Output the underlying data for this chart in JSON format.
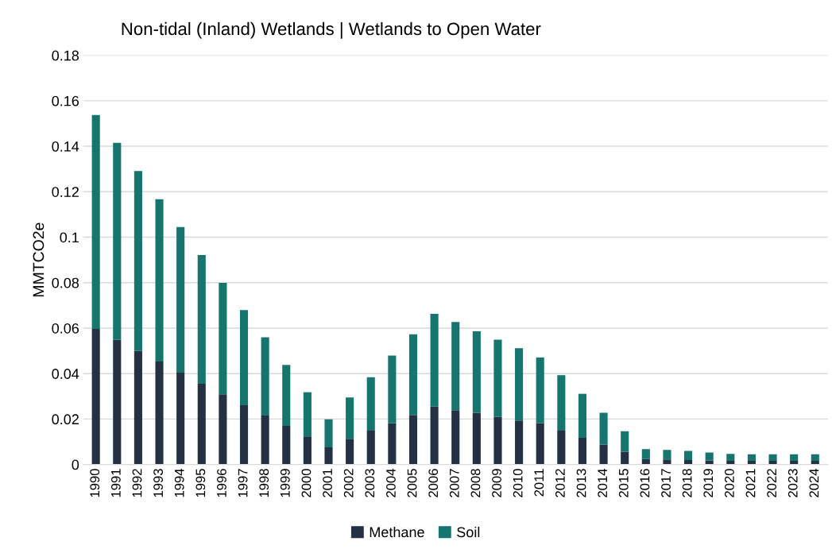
{
  "chart_data": {
    "type": "bar",
    "title": "Non-tidal (Inland) Wetlands | Wetlands to Open Water",
    "ylabel": "MMTCO2e",
    "categories": [
      "1990",
      "1991",
      "1992",
      "1993",
      "1994",
      "1995",
      "1996",
      "1997",
      "1998",
      "1999",
      "2000",
      "2001",
      "2002",
      "2003",
      "2004",
      "2005",
      "2006",
      "2007",
      "2008",
      "2009",
      "2010",
      "2011",
      "2012",
      "2013",
      "2014",
      "2015",
      "2016",
      "2017",
      "2018",
      "2019",
      "2020",
      "2021",
      "2022",
      "2023",
      "2024"
    ],
    "stacked": true,
    "series": [
      {
        "name": "Methane",
        "color": "#243145",
        "values": [
          0.0596,
          0.0548,
          0.0499,
          0.0453,
          0.0404,
          0.0355,
          0.0309,
          0.0261,
          0.0215,
          0.017,
          0.0121,
          0.0076,
          0.0113,
          0.0149,
          0.0182,
          0.0218,
          0.0255,
          0.0239,
          0.0227,
          0.0209,
          0.0194,
          0.0182,
          0.0149,
          0.0118,
          0.0088,
          0.0056,
          0.0024,
          0.0022,
          0.002,
          0.0018,
          0.0016,
          0.0016,
          0.0016,
          0.0016,
          0.0016
        ]
      },
      {
        "name": "Soil",
        "color": "#177570",
        "values": [
          0.0941,
          0.0867,
          0.0792,
          0.0714,
          0.0641,
          0.0566,
          0.049,
          0.0418,
          0.0345,
          0.0268,
          0.0197,
          0.0123,
          0.0182,
          0.0235,
          0.0297,
          0.0355,
          0.0408,
          0.0388,
          0.0359,
          0.034,
          0.0318,
          0.0289,
          0.0244,
          0.0193,
          0.014,
          0.009,
          0.0044,
          0.0042,
          0.004,
          0.0035,
          0.0031,
          0.0029,
          0.0029,
          0.0029,
          0.0029
        ]
      }
    ],
    "ylim": [
      0,
      0.18
    ],
    "yticks": [
      0,
      0.02,
      0.04,
      0.06,
      0.08,
      0.1,
      0.12,
      0.14,
      0.16,
      0.18
    ],
    "grid": "y",
    "legend": "bottom"
  }
}
